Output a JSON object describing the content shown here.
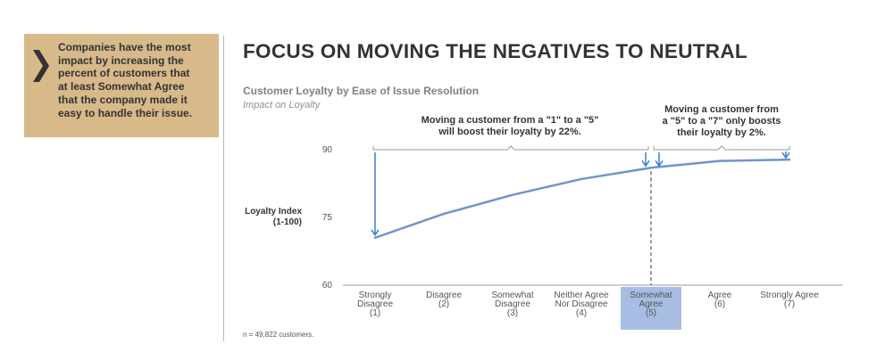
{
  "callout": {
    "lines": [
      "Companies have the most",
      "impact by increasing the",
      "percent of customers that",
      "at least Somewhat Agree",
      "that the company made it",
      "easy to handle their issue."
    ],
    "background": "#d8b98a"
  },
  "title": "FOCUS ON MOVING THE NEGATIVES TO NEUTRAL",
  "note": "n = 49,822 customers.",
  "chart_data": {
    "type": "line",
    "title": "Customer Loyalty by Ease of Issue Resolution",
    "subtitle": "Impact on Loyalty",
    "ylabel_lines": [
      "Loyalty Index",
      "(1-100)"
    ],
    "ylim": [
      60,
      90
    ],
    "yticks": [
      60,
      75,
      90
    ],
    "categories": [
      [
        "Strongly",
        "Disagree",
        "(1)"
      ],
      [
        "Disagree",
        "(2)"
      ],
      [
        "Somewhat",
        "Disagree",
        "(3)"
      ],
      [
        "Neither Agree",
        "Nor Disagree",
        "(4)"
      ],
      [
        "Somewhat",
        "Agree",
        "(5)"
      ],
      [
        "Agree",
        "(6)"
      ],
      [
        "Strongly Agree",
        "(7)"
      ]
    ],
    "highlight_index": 4,
    "series": [
      {
        "name": "Loyalty Index",
        "values": [
          70.5,
          75.8,
          80.0,
          83.5,
          86.0,
          87.5,
          87.8
        ],
        "color": "#6f94cf"
      }
    ],
    "annotations": [
      {
        "lines": [
          "Moving a customer from a \"1\" to a \"5\"",
          "will boost their loyalty by 22%."
        ],
        "from_index": 0,
        "to_index": 4
      },
      {
        "lines": [
          "Moving a customer from",
          "a \"5\" to a \"7\" only boosts",
          "their loyalty by 2%."
        ],
        "from_index": 4,
        "to_index": 6
      }
    ],
    "grid": false
  }
}
